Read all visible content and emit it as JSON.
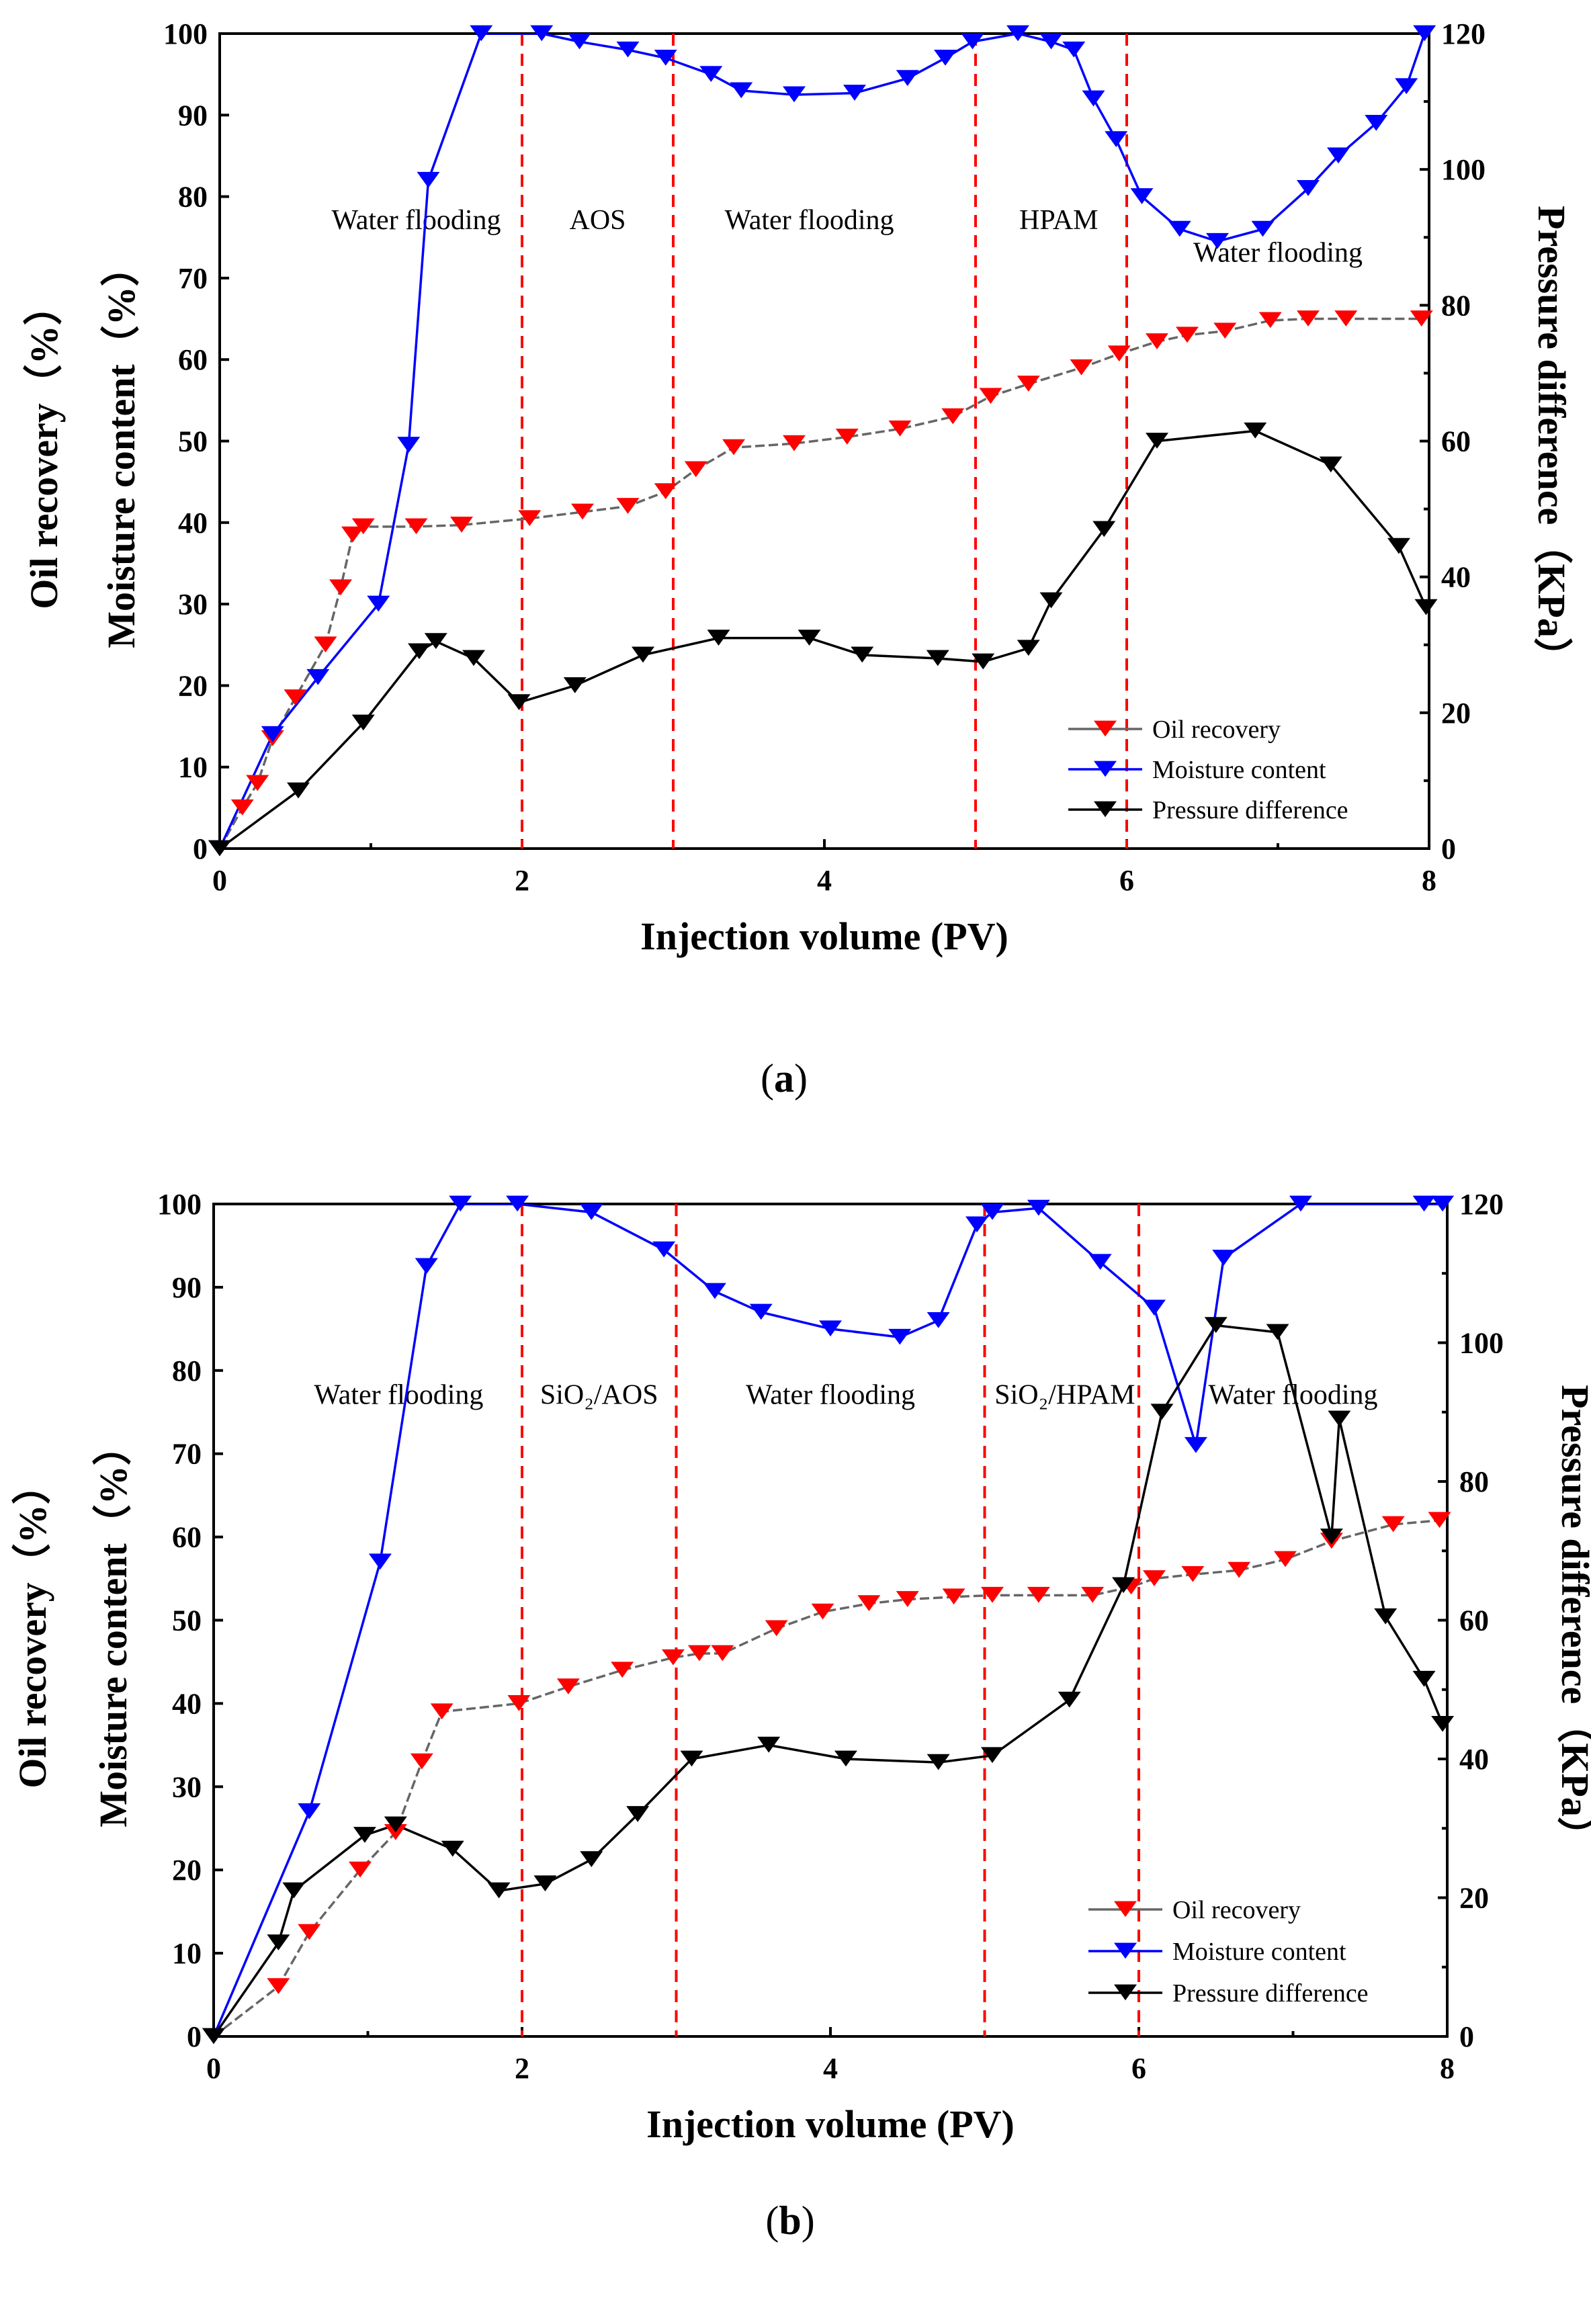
{
  "chart_data": [
    {
      "type": "line",
      "caption": "a",
      "xlabel": "Injection volume (PV)",
      "ylabel_left_top": "Oil recovery（%）",
      "ylabel_left_bottom": "Moisture content（%）",
      "ylabel_right": "Pressure difference（KPa）",
      "xlim": [
        0,
        8
      ],
      "ylim_left": [
        0,
        100
      ],
      "ylim_right": [
        0,
        120
      ],
      "x_ticks": [
        "0",
        "2",
        "4",
        "6",
        "8"
      ],
      "y_ticks_left": [
        "0",
        "10",
        "20",
        "30",
        "40",
        "50",
        "60",
        "70",
        "80",
        "90",
        "100"
      ],
      "y_ticks_right": [
        "0",
        "20",
        "40",
        "60",
        "80",
        "100",
        "120"
      ],
      "stage_boundaries": [
        2,
        3,
        5,
        6
      ],
      "stages": [
        {
          "label": "Water flooding",
          "x": 1.3,
          "y": 76
        },
        {
          "label": "AOS",
          "x": 2.5,
          "y": 76
        },
        {
          "label": "Water flooding",
          "x": 3.9,
          "y": 76
        },
        {
          "label": "HPAM",
          "x": 5.55,
          "y": 76
        },
        {
          "label": "Water flooding",
          "x": 7.0,
          "y": 72
        }
      ],
      "legend": [
        "Oil recovery",
        "Moisture content",
        "Pressure difference"
      ],
      "series": [
        {
          "name": "Oil recovery",
          "axis": "left",
          "color": "#ff0000",
          "x": [
            0,
            0.15,
            0.25,
            0.35,
            0.5,
            0.7,
            0.8,
            0.88,
            0.95,
            1.3,
            1.6,
            2.05,
            2.4,
            2.7,
            2.95,
            3.15,
            3.4,
            3.8,
            4.15,
            4.5,
            4.85,
            5.1,
            5.35,
            5.7,
            5.95,
            6.2,
            6.4,
            6.65,
            6.95,
            7.2,
            7.45,
            7.95
          ],
          "y": [
            0,
            5,
            8,
            13.5,
            18.5,
            25,
            32,
            38.5,
            39.5,
            39.5,
            39.7,
            40.5,
            41.3,
            42,
            43.8,
            46.5,
            49.2,
            49.7,
            50.5,
            51.5,
            53,
            55.5,
            57,
            59,
            60.7,
            62.2,
            63,
            63.5,
            64.8,
            65,
            65,
            65
          ]
        },
        {
          "name": "Moisture content",
          "axis": "left",
          "color": "#0000ff",
          "x": [
            0,
            0.35,
            0.65,
            1.05,
            1.25,
            1.38,
            1.73,
            2.13,
            2.38,
            2.7,
            2.95,
            3.25,
            3.45,
            3.8,
            4.2,
            4.55,
            4.8,
            4.98,
            5.28,
            5.5,
            5.65,
            5.78,
            5.93,
            6.1,
            6.35,
            6.6,
            6.9,
            7.2,
            7.4,
            7.65,
            7.85,
            7.97
          ],
          "y": [
            0,
            14,
            21,
            30,
            49.5,
            82,
            100,
            100,
            99,
            98,
            97,
            95,
            93,
            92.5,
            92.7,
            94.5,
            97,
            99,
            100,
            99,
            98,
            92,
            87,
            80,
            76,
            74.5,
            76,
            81,
            85,
            89,
            93.5,
            100
          ]
        },
        {
          "name": "Pressure difference",
          "axis": "right",
          "color": "#000000",
          "x": [
            0,
            0.52,
            0.95,
            1.32,
            1.43,
            1.68,
            1.98,
            2.35,
            2.8,
            3.3,
            3.9,
            4.25,
            4.75,
            5.05,
            5.35,
            5.5,
            5.85,
            6.2,
            6.85,
            7.35,
            7.8,
            7.98
          ],
          "y": [
            0,
            8.5,
            18.5,
            29,
            30.5,
            28,
            21.5,
            24,
            28.5,
            31,
            31,
            28.5,
            28,
            27.5,
            29.5,
            36.5,
            47,
            60,
            61.5,
            56.5,
            44.5,
            35.5
          ]
        }
      ]
    },
    {
      "type": "line",
      "caption": "b",
      "xlabel": "Injection volume (PV)",
      "ylabel_left_top": "Oil recovery（%）",
      "ylabel_left_bottom": "Moisture content（%）",
      "ylabel_right": "Pressure difference（KPa）",
      "xlim": [
        0,
        8
      ],
      "ylim_left": [
        0,
        100
      ],
      "ylim_right": [
        0,
        120
      ],
      "x_ticks": [
        "0",
        "2",
        "4",
        "6",
        "8"
      ],
      "y_ticks_left": [
        "0",
        "10",
        "20",
        "30",
        "40",
        "50",
        "60",
        "70",
        "80",
        "90",
        "100"
      ],
      "y_ticks_right": [
        "0",
        "20",
        "40",
        "60",
        "80",
        "100",
        "120"
      ],
      "stage_boundaries": [
        2,
        3,
        5,
        6
      ],
      "stages": [
        {
          "label": "Water flooding",
          "x": 1.2,
          "y": 76
        },
        {
          "label": "SiO₂/AOS",
          "x": 2.5,
          "y": 76
        },
        {
          "label": "Water flooding",
          "x": 4.0,
          "y": 76
        },
        {
          "label": "SiO₂/HPAM",
          "x": 5.52,
          "y": 76
        },
        {
          "label": "Water flooding",
          "x": 7.0,
          "y": 76
        }
      ],
      "legend": [
        "Oil recovery",
        "Moisture content",
        "Pressure difference"
      ],
      "series": [
        {
          "name": "Oil recovery",
          "axis": "left",
          "color": "#ff0000",
          "x": [
            0,
            0.42,
            0.62,
            0.95,
            1.18,
            1.35,
            1.48,
            1.98,
            2.3,
            2.65,
            2.98,
            3.15,
            3.3,
            3.65,
            3.95,
            4.25,
            4.5,
            4.8,
            5.05,
            5.35,
            5.7,
            5.95,
            6.1,
            6.35,
            6.65,
            6.95,
            7.25,
            7.65,
            7.95
          ],
          "y": [
            0,
            6,
            12.5,
            20,
            24.5,
            33,
            39,
            40,
            42,
            44,
            45.5,
            46,
            46,
            49,
            51,
            52,
            52.5,
            52.8,
            53,
            53,
            53,
            54,
            55,
            55.5,
            56,
            57.3,
            59.5,
            61.5,
            62
          ]
        },
        {
          "name": "Moisture content",
          "axis": "left",
          "color": "#0000ff",
          "x": [
            0,
            0.62,
            1.08,
            1.38,
            1.6,
            1.97,
            2.45,
            2.92,
            3.25,
            3.55,
            4.0,
            4.45,
            4.7,
            4.95,
            5.05,
            5.35,
            5.75,
            6.1,
            6.37,
            6.55,
            7.05,
            7.85,
            7.97
          ],
          "y": [
            0,
            27,
            57,
            92.5,
            100,
            100,
            99,
            94.5,
            89.5,
            87,
            85,
            84,
            86,
            97.5,
            99,
            99.5,
            93,
            87.5,
            71,
            93.5,
            100,
            100,
            100
          ]
        },
        {
          "name": "Pressure difference",
          "axis": "right",
          "color": "#000000",
          "x": [
            0,
            0.42,
            0.52,
            0.98,
            1.18,
            1.55,
            1.85,
            2.15,
            2.45,
            2.75,
            3.1,
            3.6,
            4.1,
            4.7,
            5.05,
            5.55,
            5.9,
            6.15,
            6.5,
            6.9,
            7.25,
            7.3,
            7.6,
            7.85,
            7.97
          ],
          "y": [
            0,
            13.5,
            21,
            29,
            30.5,
            27,
            21,
            22,
            25.5,
            32,
            40,
            42,
            40,
            39.5,
            40.5,
            48.5,
            65,
            90,
            102.5,
            101.5,
            72,
            89,
            60.5,
            51.5,
            45
          ]
        }
      ]
    }
  ]
}
